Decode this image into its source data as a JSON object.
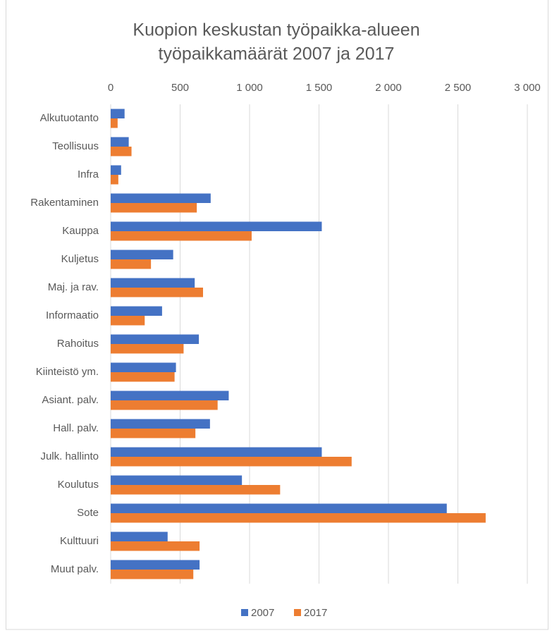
{
  "chart_data": {
    "type": "bar",
    "orientation": "horizontal",
    "title": [
      "Kuopion keskustan työpaikka-alueen",
      "työpaikkamäärät 2007 ja 2017"
    ],
    "categories": [
      "Alkutuotanto",
      "Teollisuus",
      "Infra",
      "Rakentaminen",
      "Kauppa",
      "Kuljetus",
      "Maj. ja rav.",
      "Informaatio",
      "Rahoitus",
      "Kiinteistö ym.",
      "Asiant. palv.",
      "Hall. palv.",
      "Julk. hallinto",
      "Koulutus",
      "Sote",
      "Kulttuuri",
      "Muut palv."
    ],
    "series": [
      {
        "name": "2007",
        "color": "#4472c4",
        "values": [
          100,
          130,
          75,
          720,
          1520,
          450,
          605,
          370,
          635,
          470,
          850,
          715,
          1520,
          945,
          2420,
          410,
          640
        ]
      },
      {
        "name": "2017",
        "color": "#ed7d31",
        "values": [
          50,
          150,
          55,
          620,
          1015,
          290,
          665,
          245,
          525,
          460,
          770,
          610,
          1735,
          1220,
          2700,
          640,
          595
        ]
      }
    ],
    "xlim": [
      0,
      3000
    ],
    "xticks": [
      0,
      500,
      {
        "value": 1000,
        "label": "1 000"
      },
      {
        "value": 1500,
        "label": "1 500"
      },
      {
        "value": 2000,
        "label": "2 000"
      },
      {
        "value": 2500,
        "label": "2 500"
      },
      {
        "value": 3000,
        "label": "3 000"
      }
    ],
    "grid": true,
    "legend": "bottom"
  }
}
